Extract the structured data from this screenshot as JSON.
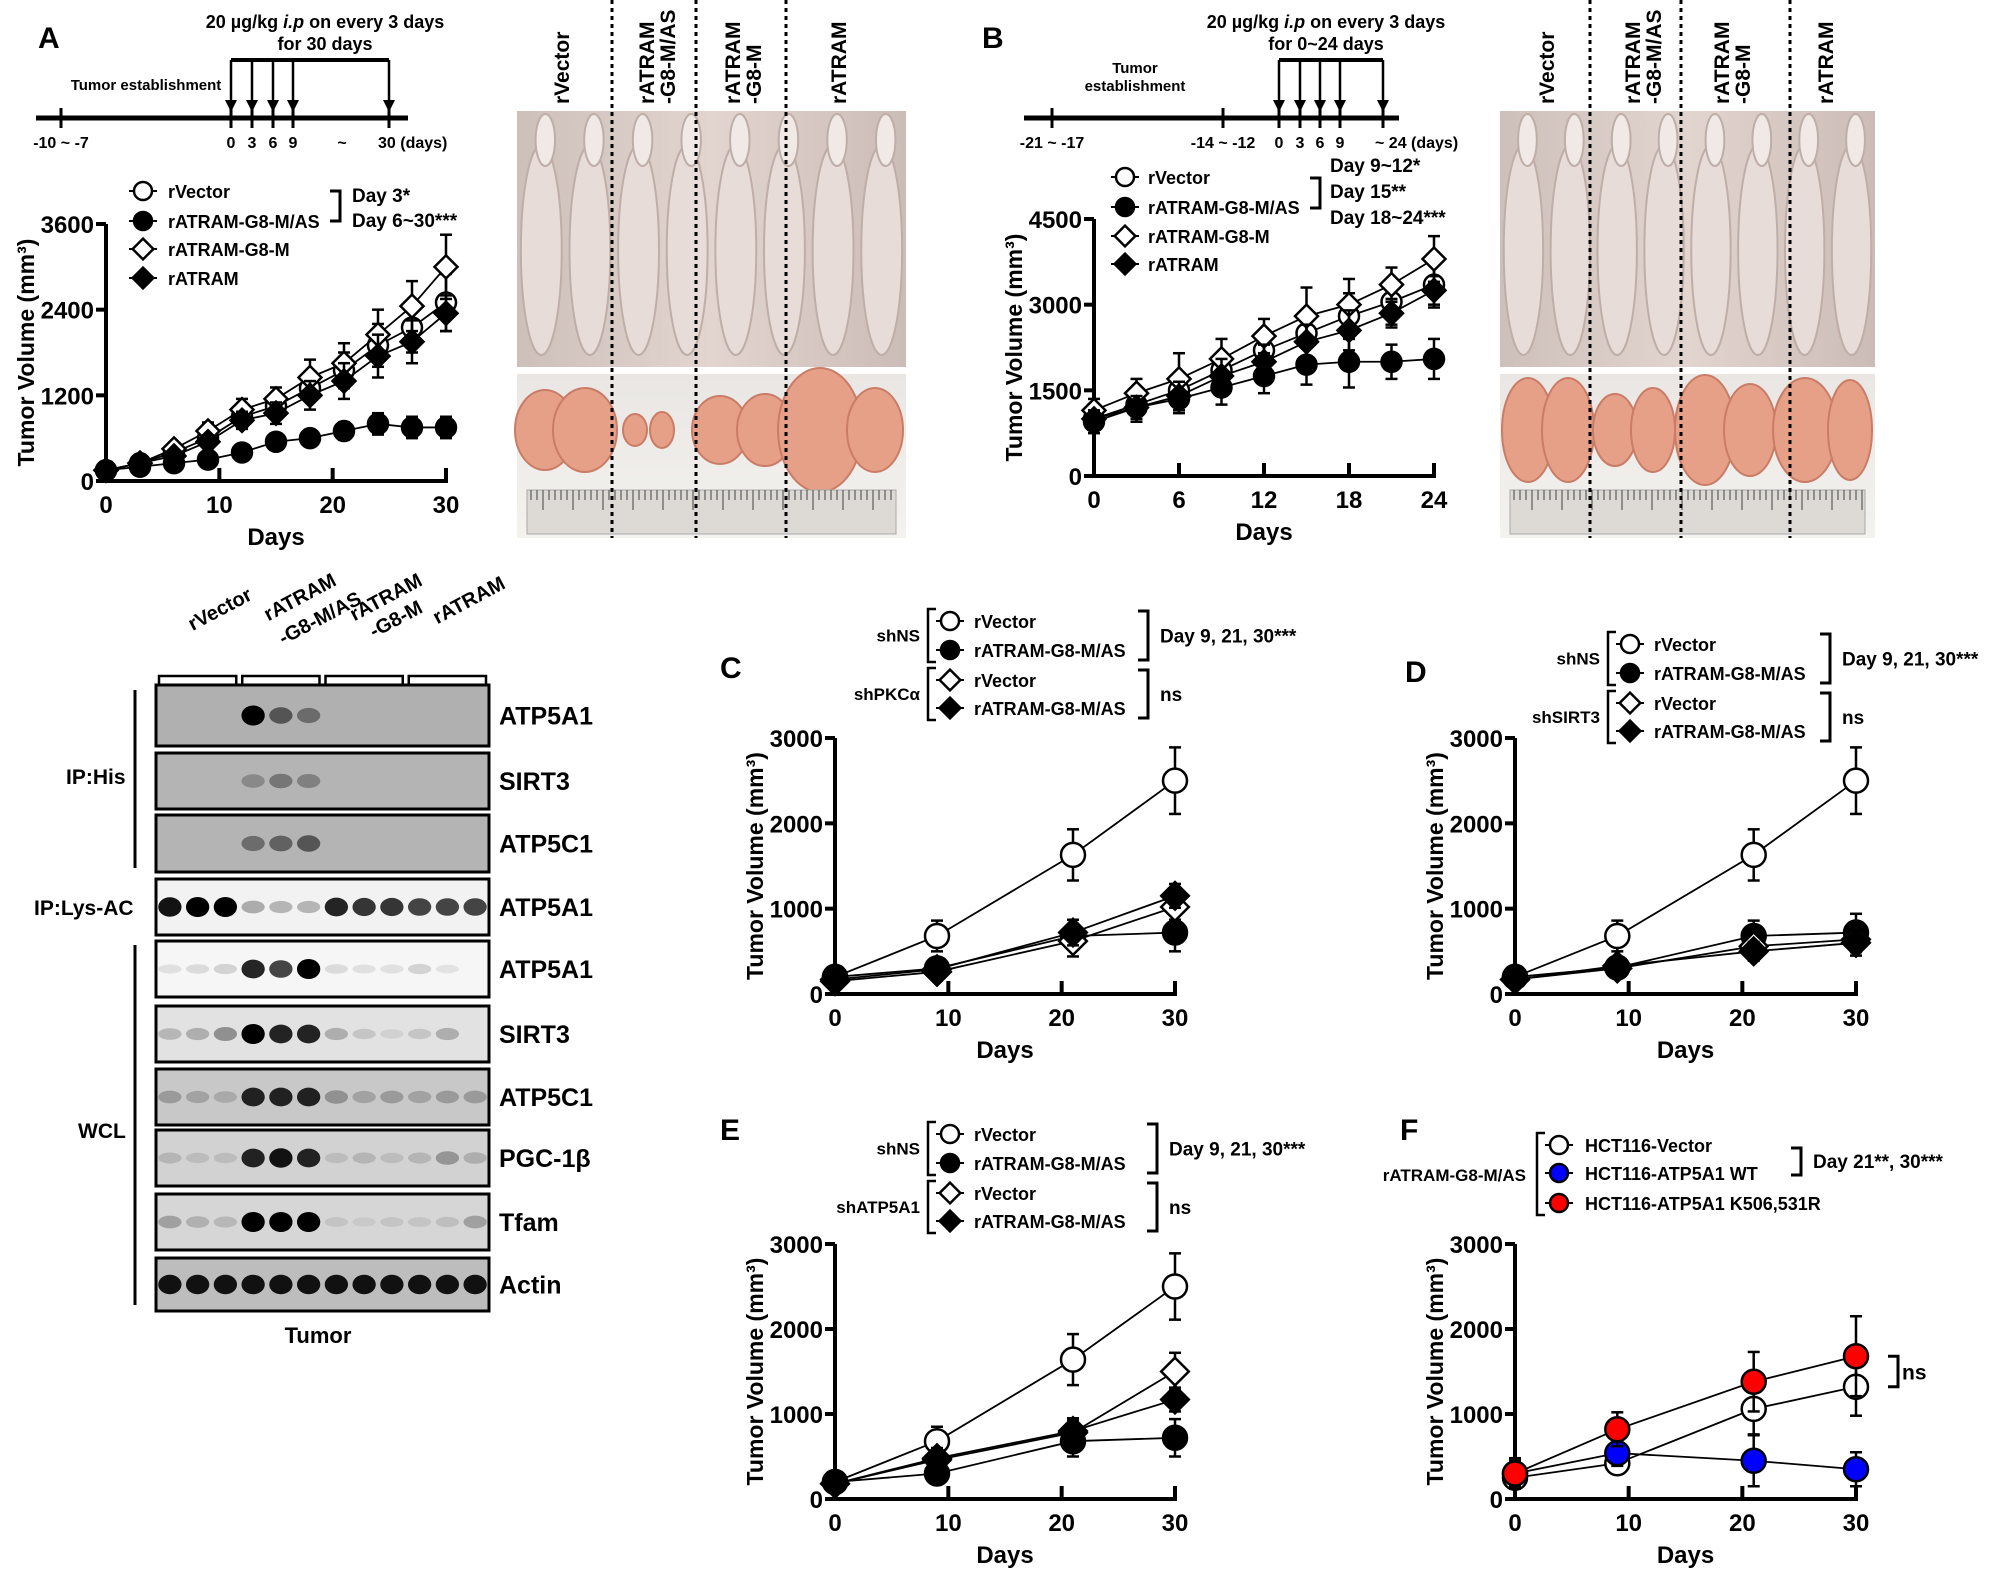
{
  "panels": {
    "A": {
      "letter": "A",
      "timeline": {
        "header1": "20 µg/kg ",
        "header1_italic": "i.p",
        "header1_rest": " on every 3 days",
        "header2": "for 30 days",
        "phase_label": "Tumor establishment",
        "tick_labels": [
          "-10 ~ -7",
          "0",
          "3",
          "6",
          "9",
          "~",
          "30 (days)"
        ]
      },
      "photo": {
        "columns": [
          "rVector",
          "rATRAM\n-G8-M/AS",
          "rATRAM\n-G8-M",
          "rATRAM"
        ]
      },
      "stats": [
        "Day 3*",
        "Day 6~30***"
      ]
    },
    "B": {
      "letter": "B",
      "timeline": {
        "header1": "20 µg/kg ",
        "header1_italic": "i.p",
        "header1_rest": " on every 3 days",
        "header2": "for 0~24 days",
        "phase_label_1": "Tumor",
        "phase_label_2": "establishment",
        "tick_labels": [
          "-21 ~ -17",
          "-14 ~ -12",
          "0",
          "3",
          "6",
          "9",
          "~ 24 (days)"
        ]
      },
      "photo": {
        "columns": [
          "rVector",
          "rATRAM\n-G8-M/AS",
          "rATRAM\n-G8-M",
          "rATRAM"
        ]
      },
      "stats": [
        "Day 9~12*",
        "Day 15**",
        "Day 18~24***"
      ]
    },
    "blot": {
      "columns": [
        "rVector",
        "rATRAM\n-G8-M/AS",
        "rATRAM\n-G8-M",
        "rATRAM"
      ],
      "groups": [
        "IP:His",
        "IP:Lys-AC",
        "WCL"
      ],
      "footer": "Tumor",
      "rows": [
        {
          "label": "ATP5A1",
          "group": "IP:His",
          "background": "#b0b0b0",
          "intensity": [
            0,
            0,
            0,
            1,
            0.7,
            0.6,
            0,
            0,
            0,
            0,
            0,
            0
          ]
        },
        {
          "label": "SIRT3",
          "group": "IP:His",
          "background": "#b4b4b4",
          "intensity": [
            0,
            0,
            0,
            0.45,
            0.55,
            0.5,
            0,
            0,
            0,
            0,
            0,
            0
          ]
        },
        {
          "label": "ATP5C1",
          "group": "IP:His",
          "background": "#b4b4b4",
          "intensity": [
            0,
            0,
            0,
            0.6,
            0.65,
            0.7,
            0,
            0,
            0,
            0,
            0,
            0
          ]
        },
        {
          "label": "ATP5A1",
          "group": "IP:Lys-AC",
          "background": "#f2f2f2",
          "intensity": [
            0.95,
            1,
            1,
            0.4,
            0.35,
            0.35,
            0.9,
            0.85,
            0.85,
            0.8,
            0.8,
            0.8
          ]
        },
        {
          "label": "ATP5A1",
          "group": "WCL",
          "background": "#f6f6f6",
          "intensity": [
            0.08,
            0.12,
            0.18,
            0.9,
            0.8,
            1,
            0.12,
            0.08,
            0.08,
            0.18,
            0.05,
            0
          ]
        },
        {
          "label": "SIRT3",
          "group": "WCL",
          "background": "#e2e2e2",
          "intensity": [
            0.3,
            0.35,
            0.5,
            1,
            0.9,
            0.9,
            0.35,
            0.2,
            0.1,
            0.2,
            0.35,
            0
          ]
        },
        {
          "label": "ATP5C1",
          "group": "WCL",
          "background": "#c8c8c8",
          "intensity": [
            0.4,
            0.35,
            0.3,
            0.9,
            0.9,
            0.9,
            0.45,
            0.35,
            0.4,
            0.35,
            0.4,
            0.4
          ]
        },
        {
          "label": "PGC-1β",
          "group": "WCL",
          "background": "#d2d2d2",
          "intensity": [
            0.25,
            0.2,
            0.2,
            0.9,
            0.95,
            0.9,
            0.2,
            0.25,
            0.2,
            0.25,
            0.45,
            0.3
          ]
        },
        {
          "label": "Tfam",
          "group": "WCL",
          "background": "#d6d6d6",
          "intensity": [
            0.4,
            0.3,
            0.25,
            1,
            1,
            1,
            0.15,
            0.1,
            0.15,
            0.15,
            0.2,
            0.4
          ]
        },
        {
          "label": "Actin",
          "group": "WCL",
          "background": "#bdbdbd",
          "intensity": [
            0.95,
            0.95,
            0.95,
            0.95,
            0.95,
            0.95,
            0.95,
            0.95,
            0.95,
            0.95,
            0.95,
            0.95
          ]
        }
      ]
    },
    "C": {
      "letter": "C",
      "groups": [
        "shNS",
        "shPKCα"
      ],
      "stats": [
        "Day 9, 21, 30***",
        "ns"
      ]
    },
    "D": {
      "letter": "D",
      "groups": [
        "shNS",
        "shSIRT3"
      ],
      "stats": [
        "Day 9, 21, 30***",
        "ns"
      ]
    },
    "E": {
      "letter": "E",
      "groups": [
        "shNS",
        "shATP5A1"
      ],
      "stats": [
        "Day 9, 21, 30***",
        "ns"
      ]
    },
    "F": {
      "letter": "F",
      "groups": [
        "rATRAM-G8-M/AS"
      ],
      "stats": [
        "Day 21**, 30***",
        "ns"
      ]
    }
  },
  "chart_data": [
    {
      "id": "A",
      "type": "line",
      "xlabel": "Days",
      "ylabel": "Tumor Volume (mm³)",
      "xlim": [
        0,
        30
      ],
      "ylim": [
        0,
        3600
      ],
      "xticks": [
        0,
        10,
        20,
        30
      ],
      "yticks": [
        0,
        1200,
        2400,
        3600
      ],
      "x": [
        0,
        3,
        6,
        9,
        12,
        15,
        18,
        21,
        24,
        27,
        30
      ],
      "legend": "top-left",
      "grid": false,
      "series": [
        {
          "name": "rVector",
          "marker": "open-circle",
          "values": [
            150,
            250,
            400,
            600,
            900,
            1050,
            1300,
            1550,
            1900,
            2150,
            2500
          ],
          "error": [
            30,
            40,
            60,
            90,
            120,
            130,
            180,
            250,
            300,
            350,
            400
          ]
        },
        {
          "name": "rATRAM-G8-M/AS",
          "marker": "filled-circle",
          "values": [
            150,
            200,
            250,
            300,
            400,
            550,
            600,
            700,
            800,
            750,
            750
          ],
          "error": [
            30,
            30,
            40,
            60,
            80,
            90,
            80,
            120,
            150,
            150,
            150
          ]
        },
        {
          "name": "rATRAM-G8-M",
          "marker": "open-diamond",
          "values": [
            150,
            250,
            450,
            700,
            1000,
            1150,
            1450,
            1650,
            2050,
            2450,
            3000
          ],
          "error": [
            30,
            40,
            60,
            120,
            150,
            160,
            250,
            280,
            350,
            350,
            450
          ]
        },
        {
          "name": "rATRAM",
          "marker": "filled-diamond",
          "values": [
            150,
            250,
            350,
            550,
            850,
            950,
            1200,
            1400,
            1750,
            1950,
            2350
          ],
          "error": [
            30,
            40,
            60,
            90,
            120,
            150,
            200,
            250,
            300,
            300,
            250
          ]
        }
      ]
    },
    {
      "id": "B",
      "type": "line",
      "xlabel": "Days",
      "ylabel": "Tumor Volume (mm³)",
      "xlim": [
        0,
        24
      ],
      "ylim": [
        0,
        4500
      ],
      "xticks": [
        0,
        6,
        12,
        18,
        24
      ],
      "yticks": [
        0,
        1500,
        3000,
        4500
      ],
      "x": [
        0,
        3,
        6,
        9,
        12,
        15,
        18,
        21,
        24
      ],
      "legend": "top-left",
      "grid": false,
      "series": [
        {
          "name": "rVector",
          "marker": "open-circle",
          "values": [
            1000,
            1250,
            1500,
            1850,
            2200,
            2500,
            2800,
            3050,
            3350
          ],
          "error": [
            150,
            200,
            250,
            300,
            300,
            400,
            400,
            400,
            400
          ]
        },
        {
          "name": "rATRAM-G8-M/AS",
          "marker": "filled-circle",
          "values": [
            950,
            1200,
            1350,
            1550,
            1750,
            1950,
            2000,
            2000,
            2050
          ],
          "error": [
            200,
            250,
            250,
            300,
            300,
            350,
            450,
            300,
            350
          ]
        },
        {
          "name": "rATRAM-G8-M",
          "marker": "open-diamond",
          "values": [
            1150,
            1450,
            1700,
            2050,
            2450,
            2800,
            3000,
            3350,
            3800
          ],
          "error": [
            200,
            250,
            450,
            350,
            300,
            500,
            450,
            300,
            400
          ]
        },
        {
          "name": "rATRAM",
          "marker": "filled-diamond",
          "values": [
            1000,
            1200,
            1400,
            1750,
            2000,
            2350,
            2550,
            2850,
            3250
          ],
          "error": [
            150,
            200,
            250,
            300,
            300,
            300,
            350,
            250,
            250
          ]
        }
      ]
    },
    {
      "id": "C",
      "type": "line",
      "xlabel": "Days",
      "ylabel": "Tumor Volume (mm³)",
      "xlim": [
        0,
        30
      ],
      "ylim": [
        0,
        3000
      ],
      "xticks": [
        0,
        10,
        20,
        30
      ],
      "yticks": [
        0,
        1000,
        2000,
        3000
      ],
      "x": [
        0,
        9,
        21,
        30
      ],
      "legend": "top",
      "grid": false,
      "series": [
        {
          "name": "rVector",
          "group": "shNS",
          "marker": "open-circle",
          "values": [
            200,
            680,
            1630,
            2500
          ],
          "error": [
            60,
            180,
            300,
            390
          ]
        },
        {
          "name": "rATRAM-G8-M/AS",
          "group": "shNS",
          "marker": "filled-circle",
          "values": [
            200,
            300,
            680,
            720
          ],
          "error": [
            60,
            80,
            120,
            220
          ]
        },
        {
          "name": "rVector",
          "group": "shPKCα",
          "marker": "open-diamond",
          "values": [
            150,
            260,
            620,
            1020
          ],
          "error": [
            50,
            90,
            180,
            150
          ]
        },
        {
          "name": "rATRAM-G8-M/AS",
          "group": "shPKCα",
          "marker": "filled-diamond",
          "values": [
            170,
            290,
            720,
            1150
          ],
          "error": [
            50,
            80,
            150,
            140
          ]
        }
      ]
    },
    {
      "id": "D",
      "type": "line",
      "xlabel": "Days",
      "ylabel": "Tumor Volume (mm³)",
      "xlim": [
        0,
        30
      ],
      "ylim": [
        0,
        3000
      ],
      "xticks": [
        0,
        10,
        20,
        30
      ],
      "yticks": [
        0,
        1000,
        2000,
        3000
      ],
      "x": [
        0,
        9,
        21,
        30
      ],
      "legend": "top",
      "grid": false,
      "series": [
        {
          "name": "rVector",
          "group": "shNS",
          "marker": "open-circle",
          "values": [
            200,
            680,
            1630,
            2500
          ],
          "error": [
            60,
            180,
            300,
            390
          ]
        },
        {
          "name": "rATRAM-G8-M/AS",
          "group": "shNS",
          "marker": "filled-circle",
          "values": [
            200,
            310,
            680,
            720
          ],
          "error": [
            60,
            100,
            180,
            220
          ]
        },
        {
          "name": "rVector",
          "group": "shSIRT3",
          "marker": "open-diamond",
          "values": [
            170,
            300,
            560,
            640
          ],
          "error": [
            50,
            80,
            120,
            150
          ]
        },
        {
          "name": "rATRAM-G8-M/AS",
          "group": "shSIRT3",
          "marker": "filled-diamond",
          "values": [
            170,
            330,
            500,
            600
          ],
          "error": [
            50,
            80,
            110,
            150
          ]
        }
      ]
    },
    {
      "id": "E",
      "type": "line",
      "xlabel": "Days",
      "ylabel": "Tumor Volume (mm³)",
      "xlim": [
        0,
        30
      ],
      "ylim": [
        0,
        3000
      ],
      "xticks": [
        0,
        10,
        20,
        30
      ],
      "yticks": [
        0,
        1000,
        2000,
        3000
      ],
      "x": [
        0,
        9,
        21,
        30
      ],
      "legend": "top",
      "grid": false,
      "series": [
        {
          "name": "rVector",
          "group": "shNS",
          "marker": "open-circle",
          "values": [
            200,
            680,
            1640,
            2500
          ],
          "error": [
            60,
            170,
            300,
            390
          ]
        },
        {
          "name": "rATRAM-G8-M/AS",
          "group": "shNS",
          "marker": "filled-circle",
          "values": [
            200,
            300,
            680,
            720
          ],
          "error": [
            60,
            100,
            180,
            220
          ]
        },
        {
          "name": "rVector",
          "group": "shATP5A1",
          "marker": "open-diamond",
          "values": [
            180,
            460,
            780,
            1500
          ],
          "error": [
            50,
            120,
            150,
            220
          ]
        },
        {
          "name": "rATRAM-G8-M/AS",
          "group": "shATP5A1",
          "marker": "filled-diamond",
          "values": [
            180,
            480,
            800,
            1170
          ],
          "error": [
            50,
            120,
            150,
            140
          ]
        }
      ]
    },
    {
      "id": "F",
      "type": "line",
      "xlabel": "Days",
      "ylabel": "Tumor Volume (mm³)",
      "xlim": [
        0,
        30
      ],
      "ylim": [
        0,
        3000
      ],
      "xticks": [
        0,
        10,
        20,
        30
      ],
      "yticks": [
        0,
        1000,
        2000,
        3000
      ],
      "x": [
        0,
        9,
        21,
        30
      ],
      "legend": "top",
      "grid": false,
      "series": [
        {
          "name": "HCT116-Vector",
          "marker": "open-circle",
          "color": "#ffffff",
          "values": [
            250,
            420,
            1060,
            1320
          ],
          "error": [
            120,
            120,
            300,
            340
          ]
        },
        {
          "name": "HCT116-ATP5A1 WT",
          "marker": "filled-circle",
          "color": "#0000ff",
          "values": [
            300,
            540,
            450,
            350
          ],
          "error": [
            180,
            150,
            300,
            200
          ]
        },
        {
          "name": "HCT116-ATP5A1 K506,531R",
          "marker": "filled-circle",
          "color": "#ff0000",
          "values": [
            300,
            820,
            1380,
            1680
          ],
          "error": [
            150,
            200,
            350,
            470
          ]
        }
      ]
    }
  ]
}
